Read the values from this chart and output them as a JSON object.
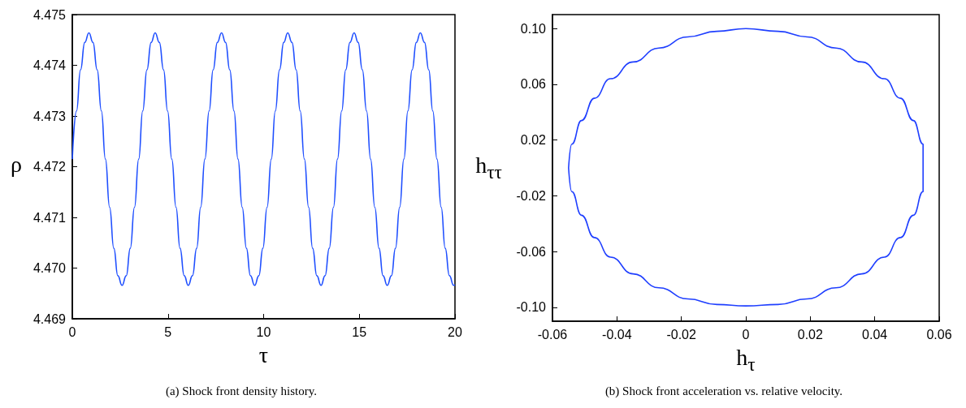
{
  "chart_data": [
    {
      "type": "line",
      "xlabel": "τ",
      "ylabel": "ρ",
      "annotations": [
        "(a) Shock front density history."
      ],
      "xlim": [
        0,
        20
      ],
      "ylim": [
        4.469,
        4.475
      ],
      "xticks": [
        0,
        5,
        10,
        15,
        20
      ],
      "yticks": [
        4.469,
        {
          "value": 4.47,
          "label": "4.470"
        },
        4.471,
        4.472,
        4.473,
        4.474,
        4.475
      ],
      "series": [
        {
          "color": "#1f4fff",
          "x": [
            0,
            0.22,
            0.43,
            0.65,
            0.87,
            1.08,
            1.3,
            1.52,
            1.73,
            1.95,
            2.17,
            2.38,
            2.6,
            2.82,
            3.03,
            3.25,
            3.47,
            3.68,
            3.9,
            4.12,
            4.33,
            4.55,
            4.77,
            4.98,
            5.2,
            5.42,
            5.63,
            5.85,
            6.06,
            6.28,
            6.5,
            6.71,
            6.93,
            7.15,
            7.36,
            7.58,
            7.8,
            8.01,
            8.23,
            8.45,
            8.66,
            8.88,
            9.1,
            9.31,
            9.53,
            9.75,
            9.96,
            10.18,
            10.4,
            10.61,
            10.83,
            11.05,
            11.26,
            11.48,
            11.7,
            11.91,
            12.13,
            12.35,
            12.56,
            12.78,
            13.0,
            13.21,
            13.43,
            13.65,
            13.86,
            14.08,
            14.29,
            14.51,
            14.73,
            14.94,
            15.16,
            15.38,
            15.59,
            15.81,
            16.03,
            16.24,
            16.46,
            16.68,
            16.89,
            17.11,
            17.33,
            17.54,
            17.76,
            17.98,
            18.19,
            18.41,
            18.63,
            18.84,
            19.06,
            19.28,
            19.49,
            19.71,
            19.93,
            20
          ],
          "values": [
            4.47215,
            4.4731,
            4.47391,
            4.47445,
            4.47464,
            4.47445,
            4.47391,
            4.4731,
            4.47215,
            4.4712,
            4.47039,
            4.46985,
            4.46966,
            4.46985,
            4.47039,
            4.4712,
            4.47215,
            4.4731,
            4.47391,
            4.47445,
            4.47464,
            4.47445,
            4.47391,
            4.4731,
            4.47215,
            4.4712,
            4.47039,
            4.46985,
            4.46966,
            4.46985,
            4.47039,
            4.4712,
            4.47215,
            4.4731,
            4.47391,
            4.47445,
            4.47464,
            4.47445,
            4.47391,
            4.4731,
            4.47215,
            4.4712,
            4.47039,
            4.46985,
            4.46966,
            4.46985,
            4.47039,
            4.4712,
            4.47215,
            4.4731,
            4.47391,
            4.47445,
            4.47464,
            4.47445,
            4.47391,
            4.4731,
            4.47215,
            4.4712,
            4.47039,
            4.46985,
            4.46966,
            4.46985,
            4.47039,
            4.4712,
            4.47215,
            4.4731,
            4.47391,
            4.47445,
            4.47464,
            4.47445,
            4.47391,
            4.4731,
            4.47215,
            4.4712,
            4.47039,
            4.46985,
            4.46966,
            4.46985,
            4.47039,
            4.4712,
            4.47215,
            4.4731,
            4.47391,
            4.47445,
            4.47464,
            4.47445,
            4.47391,
            4.4731,
            4.47215,
            4.4712,
            4.47039,
            4.46985,
            4.46966,
            4.46967
          ]
        }
      ]
    },
    {
      "type": "line",
      "xlabel": "h$_{τ}$",
      "ylabel": "h$_{ττ}$",
      "annotations": [
        "(b) Shock front acceleration vs. relative velocity."
      ],
      "xlim": [
        -0.06,
        0.06
      ],
      "ylim": [
        -0.11,
        0.11
      ],
      "xticks": [
        -0.06,
        -0.04,
        -0.02,
        {
          "value": 0,
          "label": "0"
        },
        0.02,
        0.04,
        0.06
      ],
      "yticks": [
        {
          "value": -0.1,
          "label": "-0.10"
        },
        -0.06,
        -0.02,
        0.02,
        0.06,
        {
          "value": 0.1,
          "label": "0.10"
        }
      ],
      "series": [
        {
          "color": "#1f3fff",
          "x": [
            -0.055,
            -0.054,
            -0.051,
            -0.047,
            -0.042,
            -0.035,
            -0.027,
            -0.018,
            -0.009,
            0.0,
            0.01,
            0.019,
            0.028,
            0.036,
            0.043,
            0.048,
            0.052,
            0.055,
            0.055
          ],
          "values": [
            0,
            0.017,
            0.034,
            0.05,
            0.064,
            0.076,
            0.086,
            0.094,
            0.098,
            0.1,
            0.098,
            0.094,
            0.086,
            0.076,
            0.064,
            0.05,
            0.034,
            0.017,
            0
          ]
        },
        {
          "color": "#1f3fff",
          "x": [
            -0.055,
            -0.054,
            -0.051,
            -0.047,
            -0.042,
            -0.035,
            -0.027,
            -0.018,
            -0.009,
            0.0,
            0.01,
            0.019,
            0.028,
            0.036,
            0.043,
            0.048,
            0.052,
            0.055,
            0.055
          ],
          "values": [
            0,
            -0.017,
            -0.034,
            -0.05,
            -0.064,
            -0.076,
            -0.086,
            -0.094,
            -0.098,
            -0.099,
            -0.098,
            -0.094,
            -0.086,
            -0.076,
            -0.064,
            -0.05,
            -0.034,
            -0.017,
            0
          ]
        }
      ]
    }
  ]
}
